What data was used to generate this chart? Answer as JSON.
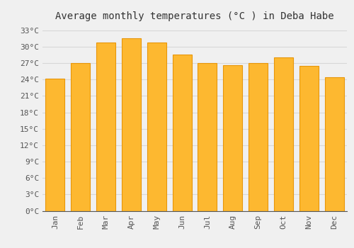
{
  "title": "Average monthly temperatures (°C ) in Deba Habe",
  "months": [
    "Jan",
    "Feb",
    "Mar",
    "Apr",
    "May",
    "Jun",
    "Jul",
    "Aug",
    "Sep",
    "Oct",
    "Nov",
    "Dec"
  ],
  "values": [
    24.2,
    27.0,
    30.8,
    31.6,
    30.8,
    28.5,
    27.0,
    26.6,
    27.0,
    28.0,
    26.5,
    24.4
  ],
  "bar_color_face": "#FDB830",
  "bar_color_edge": "#E8960A",
  "background_color": "#F0F0F0",
  "grid_color": "#D8D8D8",
  "text_color": "#555555",
  "ylim": [
    0,
    34
  ],
  "ytick_step": 3,
  "title_fontsize": 10,
  "tick_fontsize": 8,
  "font_family": "monospace"
}
